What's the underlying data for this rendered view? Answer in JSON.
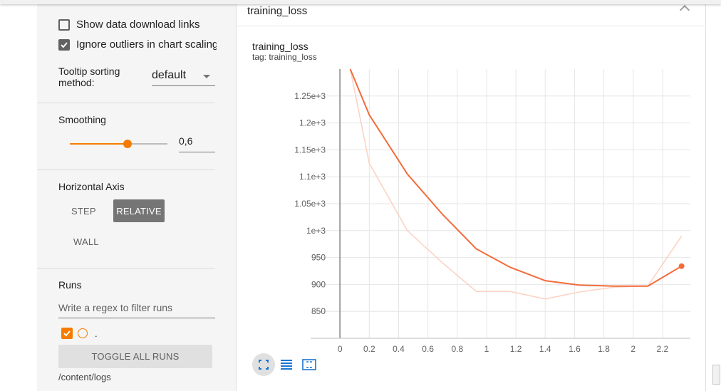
{
  "sidebar": {
    "show_download_label": "Show data download links",
    "show_download_checked": false,
    "ignore_outliers_label": "Ignore outliers in chart scaling",
    "ignore_outliers_checked": true,
    "tooltip_label": "Tooltip sorting method:",
    "tooltip_value": "default",
    "smoothing_title": "Smoothing",
    "smoothing_value": "0,6",
    "smoothing_fraction": 0.6,
    "axis_title": "Horizontal Axis",
    "axis_step": "STEP",
    "axis_relative": "RELATIVE",
    "axis_wall": "WALL",
    "runs_title": "Runs",
    "runs_filter_placeholder": "Write a regex to filter runs",
    "run_label": ".",
    "toggle_all": "TOGGLE ALL RUNS",
    "logdir": "/content/logs"
  },
  "card": {
    "header_title": "training_loss",
    "chart_title": "training_loss",
    "chart_tag": "tag: training_loss"
  },
  "icons": {
    "collapse": "chevron-up-icon",
    "fit": "fit-domain-icon",
    "log": "log-scale-icon",
    "zoom": "zoom-select-icon"
  },
  "colors": {
    "accent": "#f57c00",
    "series": "#f26b3a",
    "series_raw": "#fbd3c4"
  },
  "chart_data": {
    "type": "line",
    "title": "training_loss",
    "subtitle": "tag: training_loss",
    "xlabel": "",
    "ylabel": "",
    "x_ticks": [
      "0",
      "0.2",
      "0.4",
      "0.6",
      "0.8",
      "1",
      "1.2",
      "1.4",
      "1.6",
      "1.8",
      "2",
      "2.2"
    ],
    "y_ticks": [
      "850",
      "900",
      "950",
      "1e+3",
      "1.05e+3",
      "1.1e+3",
      "1.15e+3",
      "1.2e+3",
      "1.25e+3"
    ],
    "xlim": [
      -0.2,
      2.39
    ],
    "ylim": [
      800,
      1300
    ],
    "grid": true,
    "series": [
      {
        "role": "smoothed",
        "x": [
          0.07,
          0.2,
          0.46,
          0.7,
          0.93,
          1.16,
          1.4,
          1.63,
          1.87,
          2.1,
          2.33
        ],
        "y": [
          1300,
          1215,
          1105,
          1030,
          966,
          932,
          907,
          899,
          897,
          897,
          934
        ]
      },
      {
        "role": "raw",
        "x": [
          0.07,
          0.2,
          0.46,
          0.7,
          0.93,
          1.16,
          1.4,
          1.63,
          1.87,
          2.1,
          2.33
        ],
        "y": [
          1300,
          1125,
          1000,
          940,
          887,
          887,
          873,
          886,
          895,
          897,
          990
        ]
      }
    ]
  }
}
